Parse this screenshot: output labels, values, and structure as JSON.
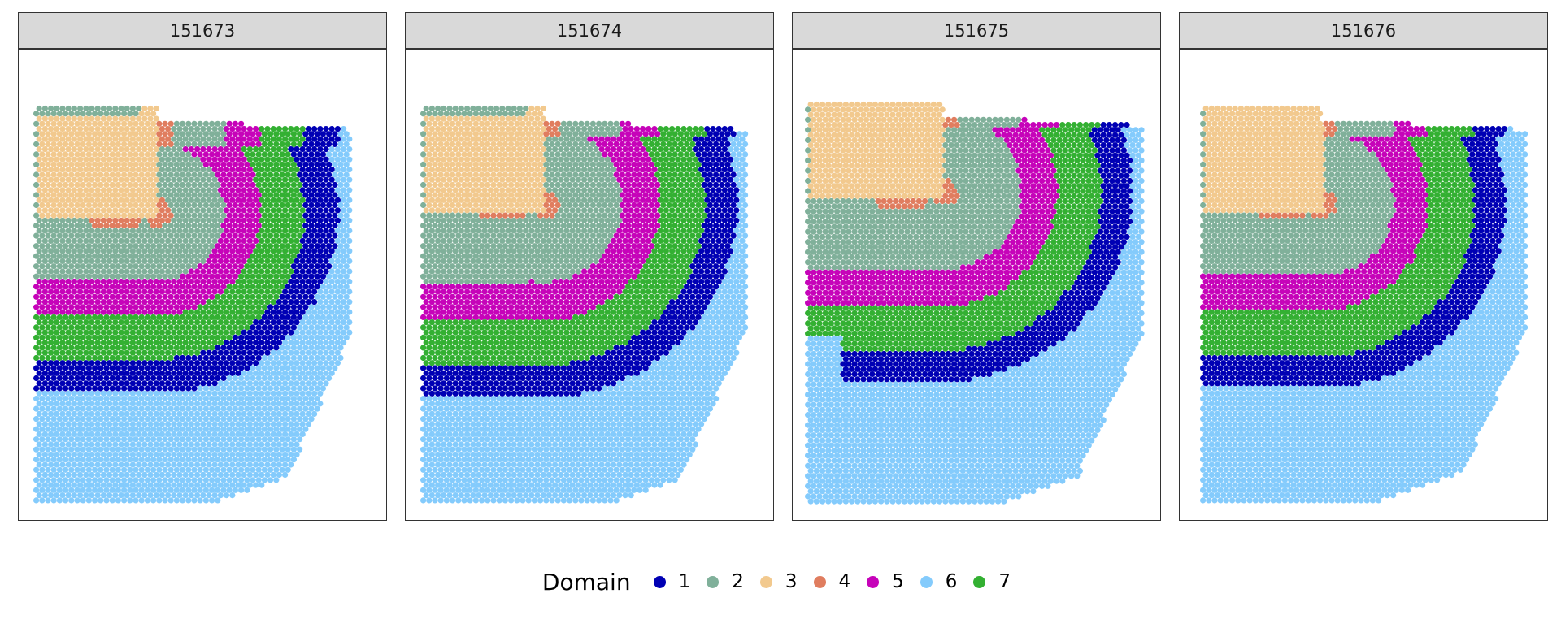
{
  "chart_data": {
    "type": "scatter",
    "description_level": "spatial domain map, faceted",
    "legend": {
      "title": "Domain",
      "placement": "bottom",
      "entries": [
        {
          "label": "1",
          "color": "#0000b4"
        },
        {
          "label": "2",
          "color": "#80b09a"
        },
        {
          "label": "3",
          "color": "#f2c98e"
        },
        {
          "label": "4",
          "color": "#e07d5f"
        },
        {
          "label": "5",
          "color": "#c603b9"
        },
        {
          "label": "6",
          "color": "#84cbfc"
        },
        {
          "label": "7",
          "color": "#33b032"
        }
      ]
    },
    "grid": false,
    "axes_visible": false,
    "facets": [
      {
        "title": "151673"
      },
      {
        "title": "151674"
      },
      {
        "title": "151675"
      },
      {
        "title": "151676"
      }
    ]
  }
}
